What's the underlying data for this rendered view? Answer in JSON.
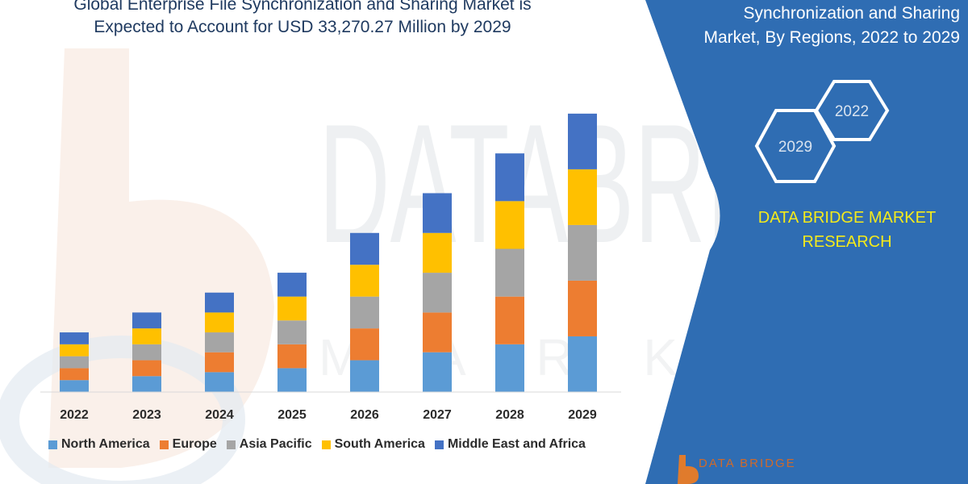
{
  "header": {
    "title_line1": "Global Enterprise File Synchronization and Sharing Market is",
    "title_line2": "Expected to Account for USD 33,270.27 Million by 2029"
  },
  "panel": {
    "title_line1": "Synchronization and Sharing",
    "title_line2": "Market, By Regions, 2022 to 2029",
    "hex_year_a": "2022",
    "hex_year_b": "2029",
    "brand_line1": "DATA BRIDGE MARKET",
    "brand_line2": "RESEARCH",
    "footer_logo_text": "DATA BRIDGE",
    "background_color": "#2f6db3",
    "brand_color": "#f4ea1b"
  },
  "watermark": {
    "text": "DATABRIDGE",
    "sub_text": "MARKET"
  },
  "chart_data": {
    "type": "bar",
    "stacked": true,
    "categories": [
      "2022",
      "2023",
      "2024",
      "2025",
      "2026",
      "2027",
      "2028",
      "2029"
    ],
    "series": [
      {
        "name": "North America",
        "color": "#5b9bd5",
        "values": [
          15,
          20,
          25,
          30,
          40,
          50,
          60,
          70
        ]
      },
      {
        "name": "Europe",
        "color": "#ed7d31",
        "values": [
          15,
          20,
          25,
          30,
          40,
          50,
          60,
          70
        ]
      },
      {
        "name": "Asia Pacific",
        "color": "#a5a5a5",
        "values": [
          15,
          20,
          25,
          30,
          40,
          50,
          60,
          70
        ]
      },
      {
        "name": "South America",
        "color": "#ffc000",
        "values": [
          15,
          20,
          25,
          30,
          40,
          50,
          60,
          70
        ]
      },
      {
        "name": "Middle East and Africa",
        "color": "#4472c4",
        "values": [
          15,
          20,
          25,
          30,
          40,
          50,
          60,
          70
        ]
      }
    ],
    "ylim": [
      0,
      360
    ],
    "grid": false,
    "legend_position": "bottom",
    "title": "",
    "xlabel": "",
    "ylabel": ""
  }
}
